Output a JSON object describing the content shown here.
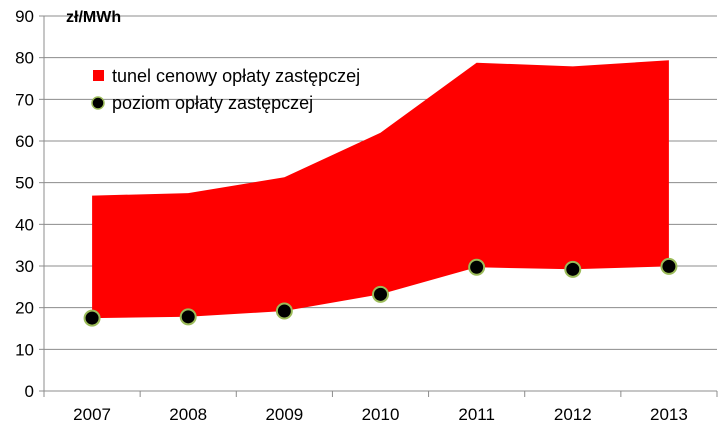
{
  "chart_data": {
    "type": "area",
    "x": [
      "2007",
      "2008",
      "2009",
      "2010",
      "2011",
      "2012",
      "2013"
    ],
    "unit_label": "zł/MWh",
    "ylim": [
      0,
      90
    ],
    "yticks": [
      0,
      10,
      20,
      30,
      40,
      50,
      60,
      70,
      80,
      90
    ],
    "grid": true,
    "legend_position": "top-left inside plot",
    "series": [
      {
        "name": "tunel cenowy opłaty zastępczej",
        "kind": "band",
        "color": "#ff0000",
        "lower": [
          17.5,
          17.8,
          19.2,
          23.2,
          29.7,
          29.2,
          29.9
        ],
        "upper": [
          46.9,
          47.5,
          51.3,
          62.0,
          78.8,
          77.9,
          79.4
        ]
      },
      {
        "name": "poziom opłaty zastępczej",
        "kind": "points",
        "color": "#000000",
        "edge_color": "#9bbb59",
        "values": [
          17.5,
          17.8,
          19.2,
          23.2,
          29.7,
          29.2,
          29.9
        ]
      }
    ]
  }
}
